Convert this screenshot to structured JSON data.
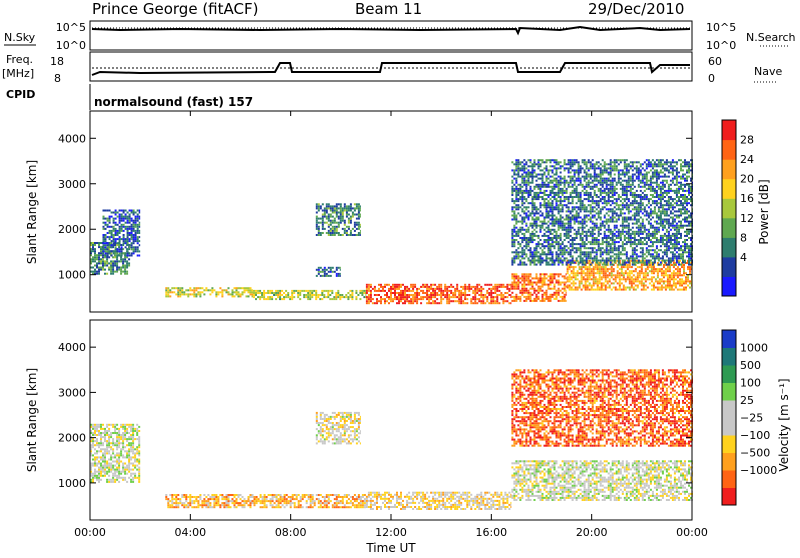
{
  "header": {
    "station": "Prince George (fitACF)",
    "beam": "Beam 11",
    "date": "29/Dec/2010"
  },
  "top_panels": {
    "nsky_label": "N.Sky",
    "nsky_ticks_left": [
      "10^5",
      "10^0"
    ],
    "nsky_ticks_right": [
      "10^5",
      "10^0"
    ],
    "nsearch_label": "N.Search",
    "freq_label": "Freq.",
    "freq_unit": "[MHz]",
    "freq_ticks": [
      "18",
      "8"
    ],
    "nave_ticks": [
      "60",
      "0"
    ],
    "nave_label": "Nave",
    "cpid_label": "CPID",
    "cpid_value": "normalsound (fast) 157"
  },
  "chart_data": [
    {
      "type": "heatmap",
      "name": "power",
      "ylabel": "Slant Range [km]",
      "yticks": [
        1000,
        2000,
        3000,
        4000
      ],
      "ylim": [
        180,
        4600
      ],
      "xlim": [
        0,
        24
      ],
      "colorbar_label": "Power [dB]",
      "colorbar_ticks": [
        "28",
        "24",
        "20",
        "16",
        "12",
        "8",
        "4"
      ],
      "colorbar_colors": [
        "#1a1aff",
        "#1e3ca0",
        "#2e7d6e",
        "#5fa850",
        "#a8c83c",
        "#ffd21e",
        "#ffa01e",
        "#ff6414",
        "#f01e1e"
      ],
      "regions": [
        {
          "t0": 0.0,
          "t1": 1.6,
          "r0": 1000,
          "r1": 1700,
          "level": 0.3
        },
        {
          "t0": 0.5,
          "t1": 2.0,
          "r0": 1400,
          "r1": 2400,
          "level": 0.2
        },
        {
          "t0": 3.0,
          "t1": 6.5,
          "r0": 500,
          "r1": 720,
          "level": 0.55
        },
        {
          "t0": 6.5,
          "t1": 11.0,
          "r0": 440,
          "r1": 640,
          "level": 0.5
        },
        {
          "t0": 11.0,
          "t1": 16.8,
          "r0": 350,
          "r1": 760,
          "level": 0.85
        },
        {
          "t0": 16.8,
          "t1": 19.0,
          "r0": 400,
          "r1": 1000,
          "level": 0.8
        },
        {
          "t0": 19.0,
          "t1": 24.0,
          "r0": 650,
          "r1": 1300,
          "level": 0.7
        },
        {
          "t0": 16.8,
          "t1": 24.0,
          "r0": 1200,
          "r1": 3500,
          "level": 0.25
        },
        {
          "t0": 9.0,
          "t1": 10.8,
          "r0": 1850,
          "r1": 2550,
          "level": 0.3
        },
        {
          "t0": 9.0,
          "t1": 10.0,
          "r0": 950,
          "r1": 1150,
          "level": 0.25
        }
      ]
    },
    {
      "type": "heatmap",
      "name": "velocity",
      "ylabel": "Slant Range [km]",
      "yticks": [
        1000,
        2000,
        3000,
        4000
      ],
      "ylim": [
        180,
        4600
      ],
      "xlim": [
        0,
        24
      ],
      "xlabel": "Time UT",
      "xticks": [
        "00:00",
        "04:00",
        "08:00",
        "12:00",
        "16:00",
        "20:00",
        "00:00"
      ],
      "colorbar_label": "Velocity [m s⁻¹]",
      "colorbar_ticks": [
        "1000",
        "500",
        "100",
        "25",
        "−25",
        "−100",
        "−500",
        "−1000"
      ],
      "colorbar_colors": [
        "#f01e1e",
        "#ff6414",
        "#ffa01e",
        "#ffd21e",
        "#c8c8c8",
        "#c8c8c8",
        "#6fd04a",
        "#2e9a52",
        "#1e7878",
        "#1a3cc8"
      ],
      "regions": [
        {
          "t0": 0.0,
          "t1": 2.0,
          "r0": 1000,
          "r1": 2300,
          "level": 0.5
        },
        {
          "t0": 3.0,
          "t1": 11.0,
          "r0": 440,
          "r1": 720,
          "level": 0.3
        },
        {
          "t0": 11.0,
          "t1": 16.8,
          "r0": 400,
          "r1": 780,
          "level": 0.4
        },
        {
          "t0": 16.8,
          "t1": 24.0,
          "r0": 600,
          "r1": 1500,
          "level": 0.5
        },
        {
          "t0": 16.8,
          "t1": 24.0,
          "r0": 1800,
          "r1": 3500,
          "level": 0.15
        },
        {
          "t0": 9.0,
          "t1": 10.8,
          "r0": 1850,
          "r1": 2550,
          "level": 0.45
        }
      ]
    }
  ]
}
